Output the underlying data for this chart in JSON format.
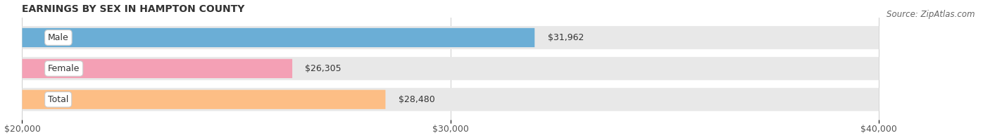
{
  "title": "EARNINGS BY SEX IN HAMPTON COUNTY",
  "source": "Source: ZipAtlas.com",
  "categories": [
    "Male",
    "Female",
    "Total"
  ],
  "values": [
    31962,
    26305,
    28480
  ],
  "bar_colors": [
    "#6baed6",
    "#f4a0b5",
    "#fdbe85"
  ],
  "bar_bg_color": "#e8e8e8",
  "xmin": 20000,
  "xmax": 40000,
  "xticks": [
    20000,
    30000,
    40000
  ],
  "xtick_labels": [
    "$20,000",
    "$30,000",
    "$40,000"
  ],
  "value_labels": [
    "$31,962",
    "$26,305",
    "$28,480"
  ],
  "title_fontsize": 10,
  "source_fontsize": 8.5,
  "tick_fontsize": 9,
  "bar_label_fontsize": 9,
  "cat_label_fontsize": 9,
  "figsize": [
    14.06,
    1.96
  ],
  "dpi": 100
}
